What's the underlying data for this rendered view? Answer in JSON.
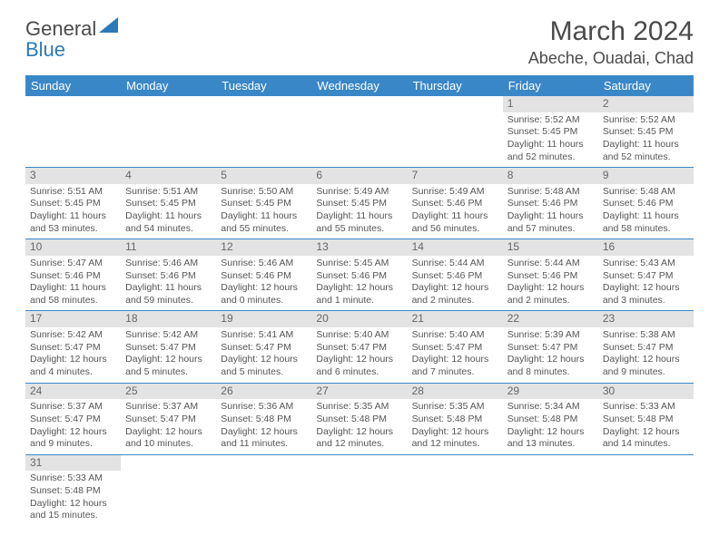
{
  "logo": {
    "text1": "General",
    "text2": "Blue",
    "sail_color": "#2a7ab8"
  },
  "title": "March 2024",
  "location": "Abeche, Ouadai, Chad",
  "header_bg": "#3a87c8",
  "daynum_bg": "#e3e3e3",
  "border_color": "#3a87c8",
  "weekdays": [
    "Sunday",
    "Monday",
    "Tuesday",
    "Wednesday",
    "Thursday",
    "Friday",
    "Saturday"
  ],
  "weeks": [
    [
      null,
      null,
      null,
      null,
      null,
      {
        "n": "1",
        "sr": "5:52 AM",
        "ss": "5:45 PM",
        "dl": "11 hours and 52 minutes."
      },
      {
        "n": "2",
        "sr": "5:52 AM",
        "ss": "5:45 PM",
        "dl": "11 hours and 52 minutes."
      }
    ],
    [
      {
        "n": "3",
        "sr": "5:51 AM",
        "ss": "5:45 PM",
        "dl": "11 hours and 53 minutes."
      },
      {
        "n": "4",
        "sr": "5:51 AM",
        "ss": "5:45 PM",
        "dl": "11 hours and 54 minutes."
      },
      {
        "n": "5",
        "sr": "5:50 AM",
        "ss": "5:45 PM",
        "dl": "11 hours and 55 minutes."
      },
      {
        "n": "6",
        "sr": "5:49 AM",
        "ss": "5:45 PM",
        "dl": "11 hours and 55 minutes."
      },
      {
        "n": "7",
        "sr": "5:49 AM",
        "ss": "5:46 PM",
        "dl": "11 hours and 56 minutes."
      },
      {
        "n": "8",
        "sr": "5:48 AM",
        "ss": "5:46 PM",
        "dl": "11 hours and 57 minutes."
      },
      {
        "n": "9",
        "sr": "5:48 AM",
        "ss": "5:46 PM",
        "dl": "11 hours and 58 minutes."
      }
    ],
    [
      {
        "n": "10",
        "sr": "5:47 AM",
        "ss": "5:46 PM",
        "dl": "11 hours and 58 minutes."
      },
      {
        "n": "11",
        "sr": "5:46 AM",
        "ss": "5:46 PM",
        "dl": "11 hours and 59 minutes."
      },
      {
        "n": "12",
        "sr": "5:46 AM",
        "ss": "5:46 PM",
        "dl": "12 hours and 0 minutes."
      },
      {
        "n": "13",
        "sr": "5:45 AM",
        "ss": "5:46 PM",
        "dl": "12 hours and 1 minute."
      },
      {
        "n": "14",
        "sr": "5:44 AM",
        "ss": "5:46 PM",
        "dl": "12 hours and 2 minutes."
      },
      {
        "n": "15",
        "sr": "5:44 AM",
        "ss": "5:46 PM",
        "dl": "12 hours and 2 minutes."
      },
      {
        "n": "16",
        "sr": "5:43 AM",
        "ss": "5:47 PM",
        "dl": "12 hours and 3 minutes."
      }
    ],
    [
      {
        "n": "17",
        "sr": "5:42 AM",
        "ss": "5:47 PM",
        "dl": "12 hours and 4 minutes."
      },
      {
        "n": "18",
        "sr": "5:42 AM",
        "ss": "5:47 PM",
        "dl": "12 hours and 5 minutes."
      },
      {
        "n": "19",
        "sr": "5:41 AM",
        "ss": "5:47 PM",
        "dl": "12 hours and 5 minutes."
      },
      {
        "n": "20",
        "sr": "5:40 AM",
        "ss": "5:47 PM",
        "dl": "12 hours and 6 minutes."
      },
      {
        "n": "21",
        "sr": "5:40 AM",
        "ss": "5:47 PM",
        "dl": "12 hours and 7 minutes."
      },
      {
        "n": "22",
        "sr": "5:39 AM",
        "ss": "5:47 PM",
        "dl": "12 hours and 8 minutes."
      },
      {
        "n": "23",
        "sr": "5:38 AM",
        "ss": "5:47 PM",
        "dl": "12 hours and 9 minutes."
      }
    ],
    [
      {
        "n": "24",
        "sr": "5:37 AM",
        "ss": "5:47 PM",
        "dl": "12 hours and 9 minutes."
      },
      {
        "n": "25",
        "sr": "5:37 AM",
        "ss": "5:47 PM",
        "dl": "12 hours and 10 minutes."
      },
      {
        "n": "26",
        "sr": "5:36 AM",
        "ss": "5:48 PM",
        "dl": "12 hours and 11 minutes."
      },
      {
        "n": "27",
        "sr": "5:35 AM",
        "ss": "5:48 PM",
        "dl": "12 hours and 12 minutes."
      },
      {
        "n": "28",
        "sr": "5:35 AM",
        "ss": "5:48 PM",
        "dl": "12 hours and 12 minutes."
      },
      {
        "n": "29",
        "sr": "5:34 AM",
        "ss": "5:48 PM",
        "dl": "12 hours and 13 minutes."
      },
      {
        "n": "30",
        "sr": "5:33 AM",
        "ss": "5:48 PM",
        "dl": "12 hours and 14 minutes."
      }
    ],
    [
      {
        "n": "31",
        "sr": "5:33 AM",
        "ss": "5:48 PM",
        "dl": "12 hours and 15 minutes."
      },
      null,
      null,
      null,
      null,
      null,
      null
    ]
  ],
  "labels": {
    "sunrise": "Sunrise: ",
    "sunset": "Sunset: ",
    "daylight": "Daylight: "
  }
}
